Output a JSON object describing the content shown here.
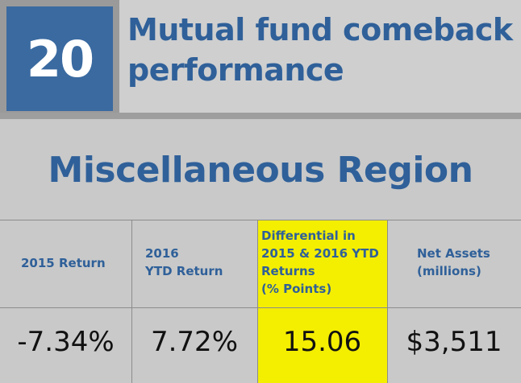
{
  "header": {
    "rank": "20",
    "title_line1": "Mutual fund comeback",
    "title_line2": "performance",
    "accent_color": "#3a6aa0",
    "text_color": "#2f6099"
  },
  "region": "Miscellaneous Region",
  "table": {
    "highlight_color": "#f4ee00",
    "columns": [
      {
        "lines": [
          "2015 Return"
        ],
        "value": "-7.34%"
      },
      {
        "lines": [
          "2016",
          "YTD Return"
        ],
        "value": "7.72%"
      },
      {
        "lines": [
          "Differential in",
          "2015 & 2016 YTD",
          "Returns",
          "(% Points)"
        ],
        "value": "15.06"
      },
      {
        "lines": [
          "Net Assets",
          "(millions)"
        ],
        "value": "$3,511"
      }
    ]
  }
}
